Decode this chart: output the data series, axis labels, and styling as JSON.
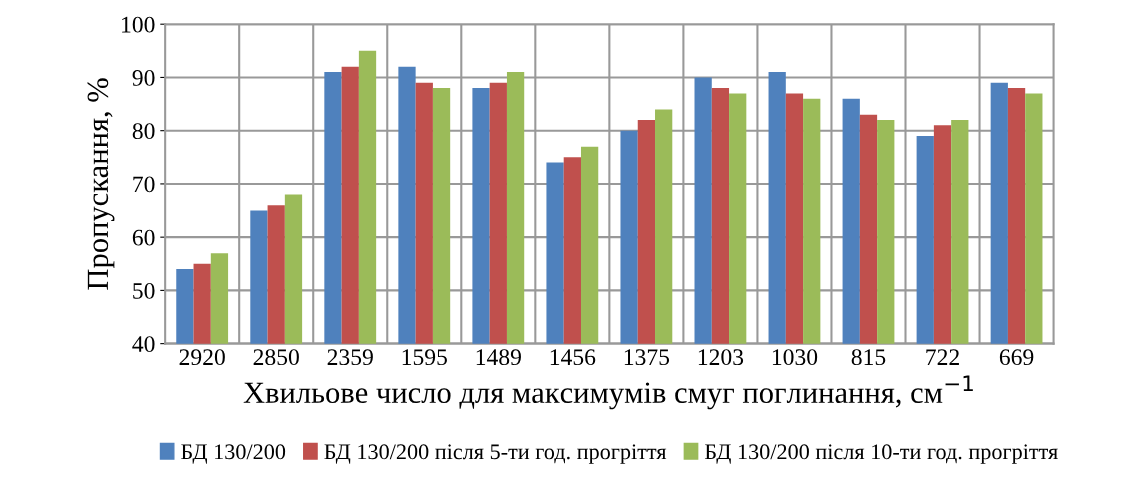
{
  "chart_data": {
    "type": "bar",
    "xlabel": "Хвильове число для максимумів смуг поглинання, см$^{−1}$",
    "ylabel": "Пропускання, %",
    "categories": [
      "2920",
      "2850",
      "2359",
      "1595",
      "1489",
      "1456",
      "1375",
      "1203",
      "1030",
      "815",
      "722",
      "669"
    ],
    "series": [
      {
        "name": "БД 130/200",
        "color": "#4f81bd",
        "values": [
          54,
          65,
          91,
          92,
          88,
          74,
          80,
          90,
          91,
          86,
          79,
          89
        ]
      },
      {
        "name": "БД 130/200 після 5-ти год. прогріття",
        "color": "#c0504d",
        "values": [
          55,
          66,
          92,
          89,
          89,
          75,
          82,
          88,
          87,
          83,
          81,
          88
        ]
      },
      {
        "name": "БД 130/200 після 10-ти год. прогріття",
        "color": "#9bbb59",
        "values": [
          57,
          68,
          95,
          88,
          91,
          77,
          84,
          87,
          86,
          82,
          82,
          87
        ]
      }
    ],
    "ylim": [
      40,
      100
    ],
    "yticks": [
      40,
      50,
      60,
      70,
      80,
      90,
      100
    ],
    "grid": true,
    "legend": "bottom"
  }
}
